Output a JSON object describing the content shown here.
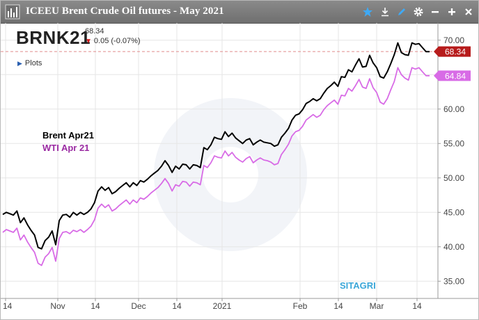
{
  "window": {
    "title": "ICEEU Brent Crude Oil futures - May 2021",
    "icons": [
      "chart-logo-icon",
      "star-icon",
      "download-icon",
      "pen-icon",
      "gear-icon",
      "minimize-icon",
      "add-icon",
      "close-icon"
    ],
    "accent_color": "#3fa9f5"
  },
  "quote": {
    "symbol": "BRNK21",
    "last": "68.34",
    "change": "0.05 (-0.07%)",
    "change_direction": "down",
    "plots_label": "Plots"
  },
  "watermark": "SITAGRI",
  "chart_data": {
    "type": "line",
    "title": "",
    "xlabel": "",
    "ylabel": "",
    "ylim": [
      32.5,
      72.5
    ],
    "y_ticks": [
      35,
      40,
      45,
      50,
      55,
      60,
      65,
      70
    ],
    "y_tick_labels": [
      "35.00",
      "40.00",
      "45.00",
      "50.00",
      "55.00",
      "60.00",
      "65.00",
      "70.00"
    ],
    "y_axis_side": "right",
    "x_tick_labels": [
      "14",
      "Nov",
      "14",
      "Dec",
      "14",
      "2021",
      "Feb",
      "14",
      "Mar",
      "14"
    ],
    "grid": true,
    "legend_placement": "left",
    "reference_line": {
      "value": 68.34,
      "style": "dashed",
      "color": "#e08a8a"
    },
    "series": [
      {
        "name": "Brent Apr21",
        "color": "#000000",
        "last_label": "68.34",
        "label_color": "#b71c1c",
        "values": [
          44.7,
          45.0,
          44.8,
          44.6,
          45.2,
          43.5,
          44.2,
          43.2,
          42.4,
          41.7,
          39.9,
          39.7,
          40.9,
          41.4,
          42.3,
          40.3,
          43.8,
          44.6,
          44.7,
          44.3,
          45.0,
          44.6,
          45.0,
          44.7,
          45.0,
          45.5,
          46.4,
          48.1,
          48.7,
          48.2,
          48.6,
          47.7,
          48.0,
          48.5,
          48.9,
          49.3,
          48.7,
          49.3,
          48.9,
          49.6,
          49.4,
          49.8,
          50.3,
          50.7,
          51.1,
          51.7,
          52.5,
          51.8,
          50.8,
          51.7,
          51.3,
          52.0,
          51.9,
          51.3,
          51.9,
          51.8,
          51.5,
          54.4,
          54.1,
          54.8,
          55.9,
          55.7,
          55.6,
          56.7,
          56.0,
          56.5,
          55.8,
          55.4,
          55.0,
          55.5,
          55.7,
          54.8,
          55.2,
          55.5,
          55.2,
          55.1,
          55.0,
          54.6,
          54.8,
          55.9,
          56.5,
          57.2,
          58.4,
          59.1,
          59.3,
          59.9,
          60.8,
          61.1,
          61.5,
          61.2,
          61.5,
          62.3,
          63.0,
          63.4,
          63.9,
          63.3,
          64.7,
          64.6,
          65.7,
          65.4,
          66.4,
          67.3,
          66.1,
          66.2,
          67.8,
          66.7,
          66.0,
          64.7,
          64.5,
          65.4,
          66.6,
          67.9,
          69.6,
          68.2,
          67.9,
          67.8,
          69.6,
          69.4,
          69.5,
          68.9,
          68.34,
          68.34
        ]
      },
      {
        "name": "WTI Apr 21",
        "color": "#d86be6",
        "last_label": "64.84",
        "label_color": "#d86be6",
        "values": [
          42.1,
          42.5,
          42.3,
          42.1,
          42.7,
          41.0,
          41.7,
          40.7,
          39.9,
          39.2,
          37.6,
          37.3,
          38.5,
          39.0,
          39.9,
          37.9,
          41.2,
          42.1,
          42.2,
          41.9,
          42.4,
          42.2,
          42.5,
          42.1,
          42.5,
          43.0,
          43.9,
          45.6,
          46.2,
          45.7,
          46.1,
          45.2,
          45.5,
          46.0,
          46.4,
          46.8,
          46.2,
          46.8,
          46.4,
          47.1,
          46.9,
          47.3,
          47.8,
          48.2,
          48.6,
          49.2,
          49.9,
          49.2,
          48.1,
          49.0,
          48.8,
          49.5,
          49.4,
          48.8,
          49.4,
          49.3,
          49.0,
          51.8,
          51.5,
          52.2,
          53.2,
          53.0,
          52.9,
          53.9,
          53.2,
          53.7,
          53.0,
          52.6,
          52.3,
          52.8,
          53.1,
          52.2,
          52.6,
          52.9,
          52.6,
          52.5,
          52.3,
          51.9,
          52.1,
          53.4,
          54.1,
          54.9,
          56.1,
          56.7,
          56.9,
          57.5,
          58.4,
          58.8,
          59.2,
          58.8,
          59.1,
          59.9,
          60.5,
          60.9,
          61.3,
          60.7,
          62.0,
          61.9,
          63.0,
          62.6,
          63.4,
          64.3,
          63.2,
          63.0,
          64.4,
          63.1,
          62.4,
          61.0,
          60.7,
          61.5,
          62.8,
          64.0,
          66.0,
          65.0,
          64.5,
          64.2,
          66.0,
          65.8,
          66.0,
          65.4,
          64.84,
          64.84
        ]
      }
    ]
  }
}
